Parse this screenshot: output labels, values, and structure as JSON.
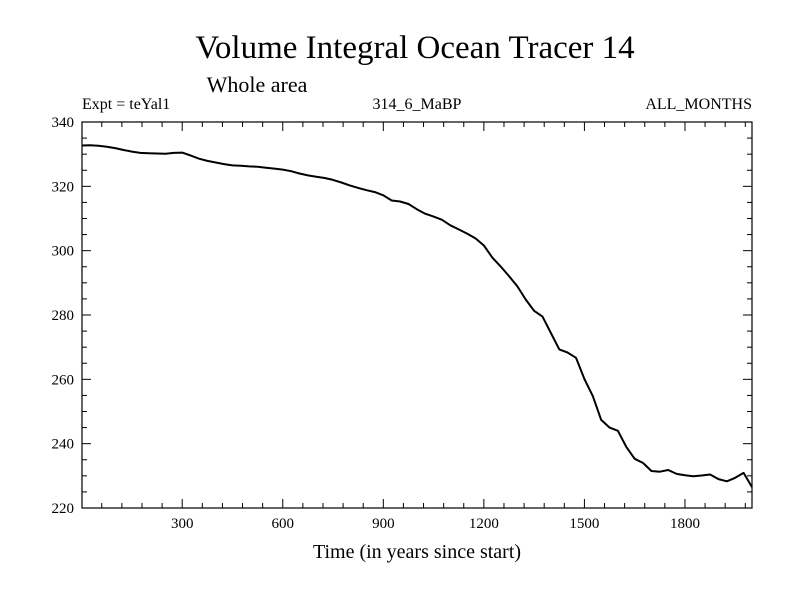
{
  "chart_data": {
    "type": "line",
    "title": "Volume Integral Ocean Tracer 14",
    "subtitle": "Whole area",
    "left_label": "Expt = teYal1",
    "center_label": "314_6_MaBP",
    "right_label": "ALL_MONTHS",
    "xlabel": "Time (in years since start)",
    "ylabel": "",
    "xlim": [
      1,
      2000
    ],
    "ylim": [
      220,
      340
    ],
    "x_ticks": [
      300,
      600,
      900,
      1200,
      1500,
      1800
    ],
    "y_ticks": [
      220,
      240,
      260,
      280,
      300,
      320,
      340
    ],
    "grid": false,
    "series": [
      {
        "name": "Tracer 14",
        "x": [
          1,
          25,
          50,
          75,
          100,
          125,
          150,
          175,
          200,
          225,
          250,
          275,
          300,
          325,
          350,
          375,
          400,
          425,
          450,
          475,
          500,
          525,
          550,
          575,
          600,
          625,
          650,
          675,
          700,
          725,
          750,
          775,
          800,
          825,
          850,
          875,
          900,
          925,
          950,
          975,
          1000,
          1025,
          1050,
          1075,
          1100,
          1125,
          1150,
          1175,
          1200,
          1225,
          1250,
          1275,
          1300,
          1325,
          1350,
          1375,
          1400,
          1425,
          1450,
          1475,
          1500,
          1525,
          1550,
          1575,
          1600,
          1625,
          1650,
          1675,
          1700,
          1725,
          1750,
          1775,
          1800,
          1825,
          1850,
          1875,
          1900,
          1925,
          1950,
          1975,
          2000
        ],
        "values": [
          332.7,
          332.8,
          332.6,
          332.3,
          331.9,
          331.3,
          330.8,
          330.4,
          330.3,
          330.2,
          330.1,
          330.4,
          330.5,
          329.6,
          328.6,
          327.9,
          327.4,
          326.9,
          326.5,
          326.4,
          326.2,
          326.1,
          325.8,
          325.5,
          325.2,
          324.7,
          324.0,
          323.4,
          323.0,
          322.6,
          322.0,
          321.2,
          320.3,
          319.5,
          318.8,
          318.2,
          317.2,
          315.6,
          315.3,
          314.5,
          312.9,
          311.5,
          310.6,
          309.6,
          307.9,
          306.6,
          305.3,
          303.8,
          301.6,
          297.9,
          295.1,
          292.1,
          288.9,
          284.8,
          281.3,
          279.5,
          274.4,
          269.3,
          268.3,
          266.7,
          260.1,
          254.8,
          247.4,
          245.0,
          244.0,
          239.0,
          235.3,
          234.0,
          231.5,
          231.3,
          231.8,
          230.6,
          230.2,
          229.9,
          230.1,
          230.4,
          229.0,
          228.3,
          229.4,
          230.9,
          226.5
        ]
      }
    ]
  }
}
